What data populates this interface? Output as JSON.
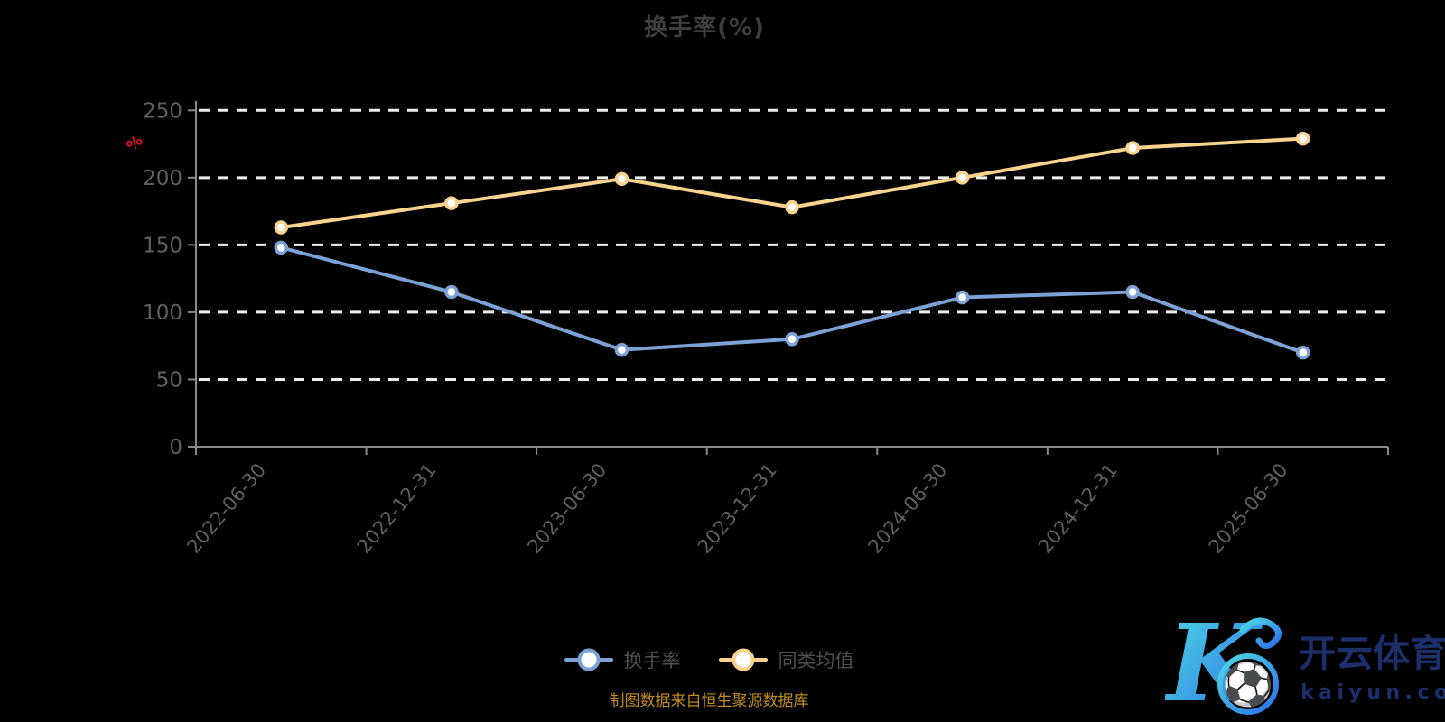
{
  "title": "换手率(%)",
  "y_axis_unit": "%",
  "footer": "制图数据来自恒生聚源数据库",
  "legend": [
    {
      "label": "换手率",
      "color": "#7ba1d6"
    },
    {
      "label": "同类均值",
      "color": "#f9d28d"
    }
  ],
  "logo": {
    "k_letter": "K",
    "ball_icon": "⚽",
    "brand": "开云体育",
    "domain_text": "kaiyun.com"
  },
  "colors": {
    "background": "#000000",
    "series_turnover": "#7ba1d6",
    "series_average": "#f9d28d",
    "gridline": "#eeeeee",
    "axis": "#8a8a8a",
    "tick_label": "#5f5f5f",
    "title_text": "#3e3e3e",
    "unit_label": "#e0111f",
    "footer_text": "#bf8b1e",
    "logo_navy": "#1c2f6b"
  },
  "chart_data": {
    "type": "line",
    "title": "换手率(%)",
    "ylabel": "%",
    "categories": [
      "2022-06-30",
      "2022-12-31",
      "2023-06-30",
      "2023-12-31",
      "2024-06-30",
      "2024-12-31",
      "2025-06-30"
    ],
    "series": [
      {
        "name": "换手率",
        "color": "#7ba1d6",
        "values": [
          148,
          115,
          72,
          80,
          111,
          115,
          70
        ]
      },
      {
        "name": "同类均值",
        "color": "#f9d28d",
        "values": [
          163,
          181,
          199,
          178,
          200,
          222,
          229
        ]
      }
    ],
    "ylim": [
      0,
      250
    ],
    "yticks": [
      0,
      50,
      100,
      150,
      200,
      250
    ],
    "grid": "horizontal-dashed-white",
    "legend_position": "bottom",
    "x_label_rotation": -50
  }
}
